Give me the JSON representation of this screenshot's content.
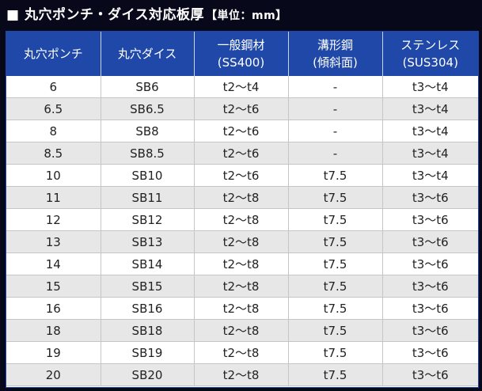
{
  "title": {
    "main": "■ 丸穴ポンチ・ダイス対応板厚",
    "unit": "【単位：mm】"
  },
  "table": {
    "headers": [
      [
        "丸穴ポンチ"
      ],
      [
        "丸穴ダイス"
      ],
      [
        "一般鋼材",
        "(SS400)"
      ],
      [
        "溝形鋼",
        "(傾斜面)"
      ],
      [
        "ステンレス",
        "(SUS304)"
      ]
    ],
    "rows": [
      [
        "6",
        "SB6",
        "t2～t4",
        "-",
        "t3～t4"
      ],
      [
        "6.5",
        "SB6.5",
        "t2～t6",
        "-",
        "t3～t4"
      ],
      [
        "8",
        "SB8",
        "t2～t6",
        "-",
        "t3～t4"
      ],
      [
        "8.5",
        "SB8.5",
        "t2～t6",
        "-",
        "t3～t4"
      ],
      [
        "10",
        "SB10",
        "t2～t6",
        "t7.5",
        "t3～t4"
      ],
      [
        "11",
        "SB11",
        "t2～t8",
        "t7.5",
        "t3～t6"
      ],
      [
        "12",
        "SB12",
        "t2～t8",
        "t7.5",
        "t3～t6"
      ],
      [
        "13",
        "SB13",
        "t2～t8",
        "t7.5",
        "t3～t6"
      ],
      [
        "14",
        "SB14",
        "t2～t8",
        "t7.5",
        "t3～t6"
      ],
      [
        "15",
        "SB15",
        "t2～t8",
        "t7.5",
        "t3～t6"
      ],
      [
        "16",
        "SB16",
        "t2～t8",
        "t7.5",
        "t3～t6"
      ],
      [
        "18",
        "SB18",
        "t2～t8",
        "t7.5",
        "t3～t6"
      ],
      [
        "19",
        "SB19",
        "t2～t8",
        "t7.5",
        "t3～t6"
      ],
      [
        "20",
        "SB20",
        "t2～t8",
        "t7.5",
        "t3～t6"
      ]
    ]
  },
  "colors": {
    "header_bg": "#1f48a8",
    "page_bg": "#07091a",
    "stripe": "#e7e7e7"
  }
}
